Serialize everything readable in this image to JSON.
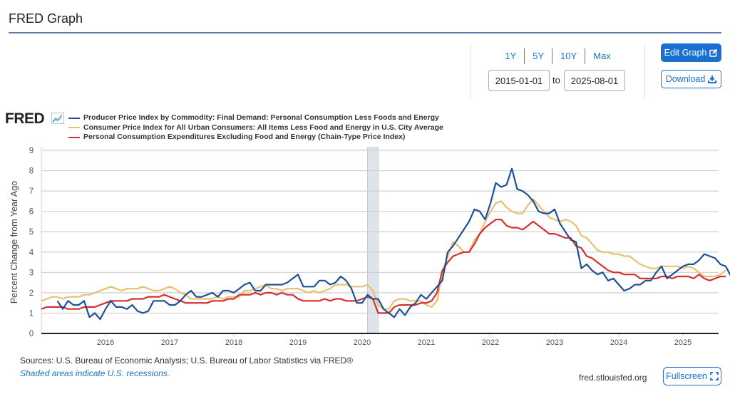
{
  "header": {
    "title": "FRED Graph"
  },
  "range": {
    "links": [
      "1Y",
      "5Y",
      "10Y",
      "Max"
    ],
    "from_value": "2015-01-01",
    "separator": "to",
    "to_value": "2025-08-01"
  },
  "buttons": {
    "edit_graph": "Edit Graph",
    "download": "Download",
    "fullscreen": "Fullscreen"
  },
  "logo": {
    "text": "FRED",
    "icon": "trend-chart-icon"
  },
  "footer": {
    "sources": "Sources: U.S. Bureau of Economic Analysis; U.S. Bureau of Labor Statistics via FRED®",
    "recession_note": "Shaded areas indicate U.S. recessions.",
    "url": "fred.stlouisfed.org"
  },
  "colors": {
    "ppi": "#1f4f96",
    "cpi": "#e8c170",
    "pce": "#d62f2f",
    "recession": "#dfe4ea",
    "accent": "#1a6fd0"
  },
  "chart_data": {
    "type": "line",
    "title": "",
    "xlabel": "",
    "ylabel": "Percent Change from Year Ago",
    "ylim": [
      0,
      9
    ],
    "yticks": [
      "0",
      "1",
      "2",
      "3",
      "4",
      "5",
      "6",
      "7",
      "8",
      "9"
    ],
    "xlim": [
      "2015-01",
      "2025-08"
    ],
    "xticks": [
      "2016",
      "2017",
      "2018",
      "2019",
      "2020",
      "2021",
      "2022",
      "2023",
      "2024",
      "2025"
    ],
    "grid": true,
    "legend_position": "top-left",
    "recessions": [
      {
        "start": "2020-02",
        "end": "2020-04"
      }
    ],
    "series": [
      {
        "name": "Producer Price Index by Commodity: Final Demand: Personal Consumption Less Foods and Energy",
        "key": "ppi",
        "start": "2015-04",
        "values": [
          1.6,
          1.2,
          1.6,
          1.4,
          1.4,
          1.6,
          0.8,
          1.0,
          0.7,
          1.2,
          1.6,
          1.3,
          1.3,
          1.2,
          1.4,
          1.1,
          1.0,
          1.1,
          1.6,
          1.6,
          1.6,
          1.4,
          1.4,
          1.6,
          1.9,
          2.1,
          1.8,
          1.8,
          1.9,
          2.0,
          1.8,
          2.1,
          2.1,
          2.0,
          2.2,
          2.4,
          2.5,
          2.1,
          2.1,
          2.4,
          2.4,
          2.4,
          2.4,
          2.5,
          2.7,
          2.9,
          2.3,
          2.3,
          2.3,
          2.6,
          2.6,
          2.4,
          2.5,
          2.8,
          2.6,
          2.2,
          1.5,
          1.5,
          1.9,
          1.7,
          1.7,
          1.2,
          1.0,
          0.8,
          1.2,
          0.9,
          1.3,
          1.5,
          1.9,
          1.7,
          2.0,
          2.3,
          2.6,
          4.0,
          4.3,
          4.7,
          5.1,
          5.5,
          6.1,
          6.0,
          5.6,
          6.4,
          7.4,
          7.2,
          7.3,
          8.1,
          7.1,
          7.0,
          6.8,
          6.5,
          6.0,
          5.9,
          5.9,
          6.1,
          5.4,
          5.0,
          4.6,
          4.5,
          3.2,
          3.4,
          3.1,
          2.9,
          3.0,
          2.6,
          2.7,
          2.4,
          2.1,
          2.2,
          2.4,
          2.4,
          2.6,
          2.6,
          3.0,
          3.3,
          2.7,
          2.9,
          3.1,
          3.3,
          3.4,
          3.4,
          3.6,
          3.9,
          3.8,
          3.7,
          3.4,
          3.3,
          2.8,
          3.4,
          2.9
        ]
      },
      {
        "name": "Consumer Price Index for All Urban Consumers: All Items Less Food and Energy in U.S. City Average",
        "key": "cpi",
        "start": "2015-01",
        "values": [
          1.6,
          1.7,
          1.8,
          1.8,
          1.7,
          1.8,
          1.8,
          1.8,
          1.9,
          1.9,
          2.0,
          2.1,
          2.2,
          2.3,
          2.2,
          2.1,
          2.2,
          2.2,
          2.2,
          2.3,
          2.2,
          2.1,
          2.1,
          2.2,
          2.3,
          2.2,
          2.0,
          1.9,
          1.7,
          1.7,
          1.7,
          1.7,
          1.7,
          1.8,
          1.7,
          1.8,
          1.8,
          1.8,
          2.1,
          2.1,
          2.2,
          2.3,
          2.4,
          2.2,
          2.2,
          2.1,
          2.2,
          2.2,
          2.2,
          2.1,
          2.0,
          2.1,
          2.0,
          2.1,
          2.2,
          2.4,
          2.4,
          2.4,
          2.3,
          2.3,
          2.3,
          2.4,
          2.1,
          1.4,
          1.2,
          1.2,
          1.6,
          1.7,
          1.7,
          1.6,
          1.6,
          1.6,
          1.4,
          1.3,
          1.6,
          3.0,
          3.8,
          4.5,
          4.3,
          4.0,
          4.0,
          4.6,
          4.9,
          5.5,
          6.0,
          6.4,
          6.5,
          6.2,
          6.0,
          5.9,
          5.9,
          6.3,
          6.6,
          6.3,
          6.0,
          5.7,
          5.6,
          5.5,
          5.6,
          5.5,
          5.3,
          4.8,
          4.7,
          4.4,
          4.1,
          4.0,
          4.0,
          3.9,
          3.9,
          3.8,
          3.8,
          3.6,
          3.4,
          3.3,
          3.2,
          3.2,
          3.3,
          3.3,
          3.3,
          3.3,
          3.2,
          3.3,
          3.2,
          3.0,
          2.8,
          2.8,
          2.8,
          2.9,
          3.1
        ]
      },
      {
        "name": "Personal Consumption Expenditures Excluding Food and Energy (Chain-Type Price Index)",
        "key": "pce",
        "start": "2015-01",
        "values": [
          1.2,
          1.3,
          1.3,
          1.3,
          1.3,
          1.2,
          1.2,
          1.2,
          1.3,
          1.3,
          1.3,
          1.4,
          1.5,
          1.6,
          1.6,
          1.6,
          1.6,
          1.7,
          1.7,
          1.7,
          1.8,
          1.8,
          1.8,
          1.9,
          1.8,
          1.7,
          1.6,
          1.5,
          1.5,
          1.5,
          1.5,
          1.5,
          1.6,
          1.6,
          1.6,
          1.7,
          1.7,
          1.9,
          1.9,
          1.9,
          2.0,
          1.9,
          2.0,
          2.0,
          1.9,
          2.0,
          1.9,
          1.9,
          1.7,
          1.6,
          1.6,
          1.6,
          1.6,
          1.7,
          1.6,
          1.7,
          1.7,
          1.6,
          1.6,
          1.6,
          1.7,
          1.8,
          1.7,
          1.0,
          1.0,
          1.0,
          1.3,
          1.4,
          1.4,
          1.4,
          1.4,
          1.5,
          1.5,
          1.6,
          2.0,
          3.1,
          3.5,
          3.8,
          3.9,
          4.0,
          4.0,
          4.4,
          4.9,
          5.2,
          5.4,
          5.6,
          5.6,
          5.3,
          5.2,
          5.2,
          5.1,
          5.3,
          5.5,
          5.3,
          5.1,
          4.9,
          4.9,
          4.8,
          4.7,
          4.7,
          4.3,
          4.2,
          3.8,
          3.7,
          3.5,
          3.3,
          3.1,
          3.0,
          3.0,
          2.9,
          2.9,
          2.9,
          2.7,
          2.7,
          2.7,
          2.7,
          2.8,
          2.8,
          2.7,
          2.8,
          2.8,
          2.8,
          2.7,
          2.9,
          2.7,
          2.6,
          2.7,
          2.8,
          2.8
        ]
      }
    ]
  }
}
